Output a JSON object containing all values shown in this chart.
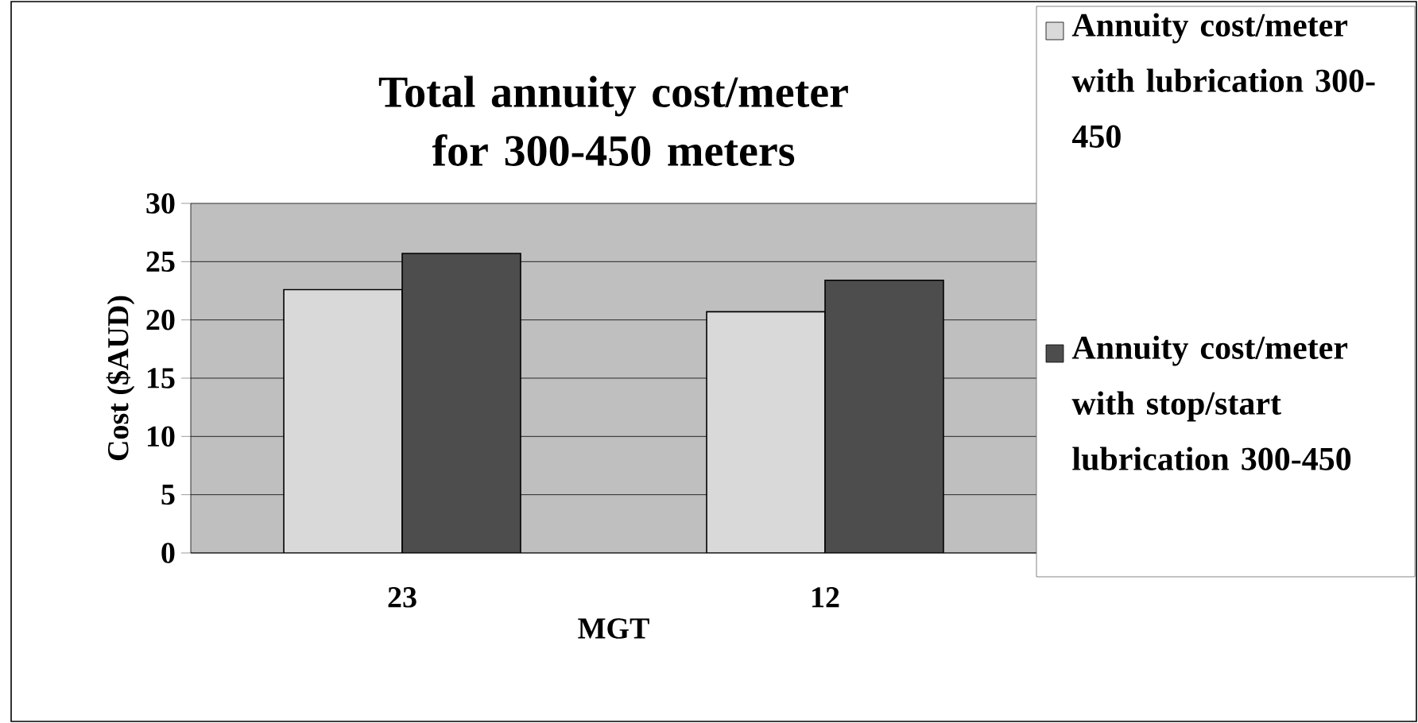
{
  "chart_data": {
    "type": "bar",
    "title": "Total annuity cost/meter for 300-450 meters",
    "categories": [
      "23",
      "12"
    ],
    "xlabel": "MGT",
    "ylabel": "Cost ($AUD)",
    "series": [
      {
        "name": "Annuity cost/meter with lubrication 300-450",
        "color": "#d9d9d9",
        "values": [
          22.6,
          20.7
        ]
      },
      {
        "name": "Annuity cost/meter with stop/start lubrication 300-450",
        "color": "#4d4d4d",
        "values": [
          25.7,
          23.4
        ]
      }
    ],
    "ylim": [
      0,
      30
    ],
    "yticks": [
      0,
      5,
      10,
      15,
      20,
      25,
      30
    ],
    "grid": "y",
    "legend": "right"
  }
}
